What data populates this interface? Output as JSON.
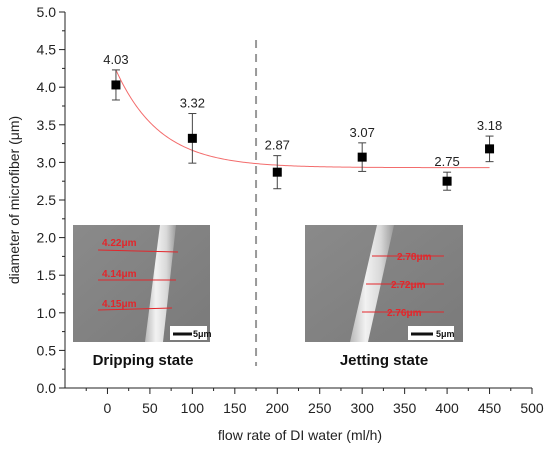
{
  "chart_data": {
    "type": "scatter",
    "xlabel": "flow rate of DI water (ml/h)",
    "ylabel": "diameter of microfiber (μm)",
    "xlim": [
      -50,
      500
    ],
    "ylim": [
      0.0,
      5.0
    ],
    "x_ticks": [
      "0",
      "50",
      "100",
      "150",
      "200",
      "250",
      "300",
      "350",
      "400",
      "450",
      "500"
    ],
    "y_ticks": [
      "0.0",
      "0.5",
      "1.0",
      "1.5",
      "2.0",
      "2.5",
      "3.0",
      "3.5",
      "4.0",
      "4.5",
      "5.0"
    ],
    "points": [
      {
        "x": 10,
        "y": 4.03,
        "err": 0.2,
        "label": "4.03"
      },
      {
        "x": 100,
        "y": 3.32,
        "err": 0.33,
        "label": "3.32"
      },
      {
        "x": 200,
        "y": 2.87,
        "err": 0.22,
        "label": "2.87"
      },
      {
        "x": 300,
        "y": 3.07,
        "err": 0.19,
        "label": "3.07"
      },
      {
        "x": 400,
        "y": 2.75,
        "err": 0.12,
        "label": "2.75"
      },
      {
        "x": 450,
        "y": 3.18,
        "err": 0.17,
        "label": "3.18"
      }
    ],
    "fit_curve": {
      "y0": 2.93,
      "amplitude": 1.3,
      "decay": 52,
      "x_from": 10,
      "x_to": 450,
      "color": "#f36c6c"
    },
    "divider_x": 175,
    "grid": false,
    "colors": {
      "marker": "#000000",
      "fit": "#f36c6c",
      "divider": "#999999",
      "annotation": "#e3262b"
    },
    "insets": [
      {
        "state_label": "Dripping state",
        "measurements": [
          "4.22μm",
          "4.14μm",
          "4.15μm"
        ],
        "scale_bar": "5μm"
      },
      {
        "state_label": "Jetting state",
        "measurements": [
          "2.78μm",
          "2.72μm",
          "2.76μm"
        ],
        "scale_bar": "5μm"
      }
    ]
  }
}
